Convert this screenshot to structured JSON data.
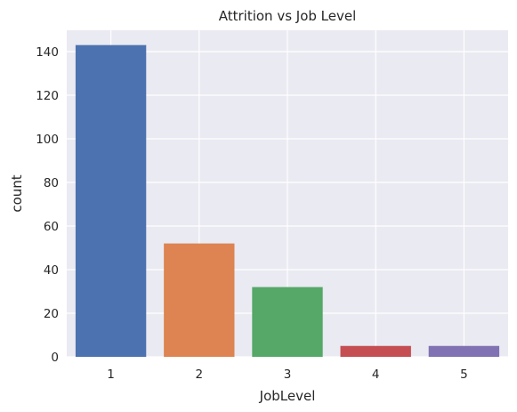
{
  "chart_data": {
    "type": "bar",
    "title": "Attrition vs Job Level",
    "xlabel": "JobLevel",
    "ylabel": "count",
    "categories": [
      "1",
      "2",
      "3",
      "4",
      "5"
    ],
    "values": [
      143,
      52,
      32,
      5,
      5
    ],
    "colors": [
      "#4c72b0",
      "#dd8452",
      "#55a868",
      "#c44e52",
      "#8172b3"
    ],
    "ylim": [
      0,
      150
    ],
    "yticks": [
      0,
      20,
      40,
      60,
      80,
      100,
      120,
      140
    ],
    "grid": true,
    "background": "#eaeaf2",
    "grid_color": "#ffffff"
  }
}
